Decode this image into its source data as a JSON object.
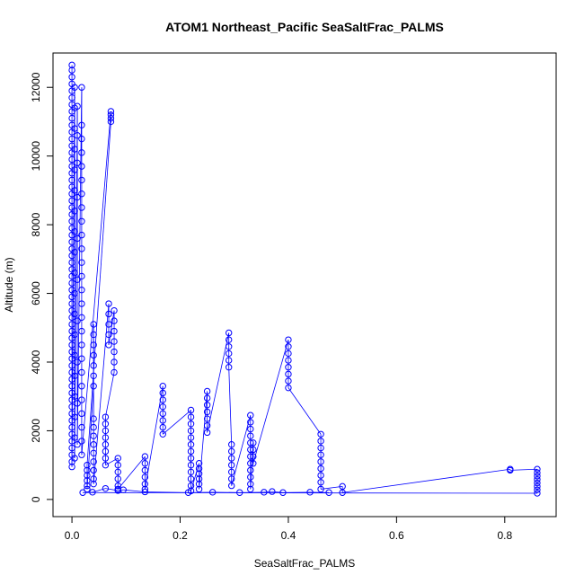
{
  "chart_data": {
    "type": "scatter",
    "title": "ATOM1 Northeast_Pacific SeaSaltFrac_PALMS",
    "xlabel": "SeaSaltFrac_PALMS",
    "ylabel": "Altitude (m)",
    "xlim": [
      -0.035,
      0.895
    ],
    "ylim": [
      -500,
      13000
    ],
    "x_ticks": [
      0,
      0.2,
      0.4,
      0.6,
      0.8
    ],
    "x_tick_labels": [
      "0.0",
      "0.2",
      "0.4",
      "0.6",
      "0.8"
    ],
    "y_ticks": [
      0,
      2000,
      4000,
      6000,
      8000,
      10000,
      12000
    ],
    "y_tick_labels": [
      "0",
      "2000",
      "4000",
      "6000",
      "8000",
      "10000",
      "12000"
    ],
    "series": [
      {
        "color": "#0000ff",
        "marker": "open-circle",
        "connected": true,
        "points": [
          [
            0.0,
            12650
          ],
          [
            0.0,
            12500
          ],
          [
            0.0,
            12300
          ],
          [
            0.0,
            12100
          ],
          [
            0.0,
            11900
          ],
          [
            0.0,
            11700
          ],
          [
            0.0,
            11500
          ],
          [
            0.0,
            11300
          ],
          [
            0.0,
            11100
          ],
          [
            0.0,
            10900
          ],
          [
            0.0,
            10700
          ],
          [
            0.0,
            10500
          ],
          [
            0.0,
            10300
          ],
          [
            0.0,
            10100
          ],
          [
            0.0,
            9900
          ],
          [
            0.0,
            9700
          ],
          [
            0.0,
            9500
          ],
          [
            0.0,
            9300
          ],
          [
            0.0,
            9100
          ],
          [
            0.0,
            8900
          ],
          [
            0.0,
            8700
          ],
          [
            0.0,
            8500
          ],
          [
            0.0,
            8300
          ],
          [
            0.0,
            8100
          ],
          [
            0.0,
            7900
          ],
          [
            0.0,
            7700
          ],
          [
            0.0,
            7500
          ],
          [
            0.0,
            7300
          ],
          [
            0.0,
            7100
          ],
          [
            0.0,
            6900
          ],
          [
            0.0,
            6700
          ],
          [
            0.0,
            6500
          ],
          [
            0.0,
            6300
          ],
          [
            0.0,
            6100
          ],
          [
            0.0,
            5900
          ],
          [
            0.0,
            5700
          ],
          [
            0.0,
            5500
          ],
          [
            0.0,
            5300
          ],
          [
            0.0,
            5100
          ],
          [
            0.0,
            4900
          ],
          [
            0.0,
            4700
          ],
          [
            0.0,
            4500
          ],
          [
            0.0,
            4300
          ],
          [
            0.0,
            4100
          ],
          [
            0.0,
            3900
          ],
          [
            0.0,
            3700
          ],
          [
            0.0,
            3500
          ],
          [
            0.0,
            3300
          ],
          [
            0.0,
            3100
          ],
          [
            0.0,
            2900
          ],
          [
            0.0,
            2700
          ],
          [
            0.0,
            2500
          ],
          [
            0.0,
            2300
          ],
          [
            0.0,
            2100
          ],
          [
            0.0,
            1900
          ],
          [
            0.0,
            1700
          ],
          [
            0.0,
            1500
          ],
          [
            0.0,
            1300
          ],
          [
            0.0,
            1100
          ],
          [
            0.0,
            950
          ],
          [
            0.005,
            12000
          ],
          [
            0.005,
            11400
          ],
          [
            0.005,
            10800
          ],
          [
            0.005,
            10200
          ],
          [
            0.005,
            9600
          ],
          [
            0.005,
            9000
          ],
          [
            0.005,
            8400
          ],
          [
            0.005,
            7800
          ],
          [
            0.005,
            7200
          ],
          [
            0.005,
            6600
          ],
          [
            0.005,
            6000
          ],
          [
            0.005,
            5400
          ],
          [
            0.005,
            4800
          ],
          [
            0.005,
            4200
          ],
          [
            0.005,
            3600
          ],
          [
            0.005,
            3000
          ],
          [
            0.005,
            2400
          ],
          [
            0.005,
            1800
          ],
          [
            0.005,
            1200
          ],
          [
            0.01,
            11450
          ],
          [
            0.01,
            10600
          ],
          [
            0.01,
            9800
          ],
          [
            0.01,
            8800
          ],
          [
            0.01,
            7600
          ],
          [
            0.01,
            6400
          ],
          [
            0.01,
            5200
          ],
          [
            0.01,
            4000
          ],
          [
            0.01,
            2800
          ],
          [
            0.01,
            1600
          ],
          [
            0.018,
            12000
          ],
          [
            0.018,
            10900
          ],
          [
            0.018,
            10500
          ],
          [
            0.018,
            10100
          ],
          [
            0.018,
            9700
          ],
          [
            0.018,
            9300
          ],
          [
            0.018,
            8900
          ],
          [
            0.018,
            8500
          ],
          [
            0.018,
            8100
          ],
          [
            0.018,
            7700
          ],
          [
            0.018,
            7300
          ],
          [
            0.018,
            6900
          ],
          [
            0.018,
            6500
          ],
          [
            0.018,
            6100
          ],
          [
            0.018,
            5700
          ],
          [
            0.018,
            5300
          ],
          [
            0.018,
            4900
          ],
          [
            0.018,
            4500
          ],
          [
            0.018,
            4100
          ],
          [
            0.018,
            3700
          ],
          [
            0.018,
            3300
          ],
          [
            0.018,
            2900
          ],
          [
            0.018,
            2500
          ],
          [
            0.018,
            2100
          ],
          [
            0.018,
            1700
          ],
          [
            0.018,
            1300
          ],
          [
            0.072,
            11300
          ],
          [
            0.072,
            11200
          ],
          [
            0.072,
            11100
          ],
          [
            0.072,
            11000
          ],
          [
            0.028,
            1000
          ],
          [
            0.028,
            850
          ],
          [
            0.028,
            700
          ],
          [
            0.028,
            550
          ],
          [
            0.028,
            400
          ],
          [
            0.028,
            300
          ],
          [
            0.04,
            3300
          ],
          [
            0.04,
            3600
          ],
          [
            0.04,
            3900
          ],
          [
            0.04,
            4200
          ],
          [
            0.04,
            4500
          ],
          [
            0.04,
            4800
          ],
          [
            0.04,
            5100
          ],
          [
            0.04,
            2350
          ],
          [
            0.04,
            2100
          ],
          [
            0.04,
            1850
          ],
          [
            0.04,
            1600
          ],
          [
            0.04,
            1350
          ],
          [
            0.04,
            1100
          ],
          [
            0.04,
            850
          ],
          [
            0.04,
            600
          ],
          [
            0.04,
            450
          ],
          [
            0.068,
            5700
          ],
          [
            0.068,
            5400
          ],
          [
            0.068,
            5100
          ],
          [
            0.068,
            4800
          ],
          [
            0.068,
            4500
          ],
          [
            0.078,
            5500
          ],
          [
            0.078,
            5200
          ],
          [
            0.078,
            4900
          ],
          [
            0.078,
            4600
          ],
          [
            0.078,
            4300
          ],
          [
            0.078,
            4000
          ],
          [
            0.078,
            3700
          ],
          [
            0.062,
            2400
          ],
          [
            0.062,
            2200
          ],
          [
            0.062,
            2000
          ],
          [
            0.062,
            1800
          ],
          [
            0.062,
            1600
          ],
          [
            0.062,
            1400
          ],
          [
            0.062,
            1200
          ],
          [
            0.062,
            1000
          ],
          [
            0.085,
            1200
          ],
          [
            0.085,
            1000
          ],
          [
            0.085,
            800
          ],
          [
            0.085,
            600
          ],
          [
            0.085,
            400
          ],
          [
            0.085,
            300
          ],
          [
            0.135,
            1250
          ],
          [
            0.135,
            1050
          ],
          [
            0.135,
            850
          ],
          [
            0.135,
            650
          ],
          [
            0.135,
            450
          ],
          [
            0.135,
            300
          ],
          [
            0.168,
            3300
          ],
          [
            0.168,
            3100
          ],
          [
            0.168,
            2900
          ],
          [
            0.168,
            2700
          ],
          [
            0.168,
            2500
          ],
          [
            0.168,
            2300
          ],
          [
            0.168,
            2100
          ],
          [
            0.168,
            1900
          ],
          [
            0.22,
            2600
          ],
          [
            0.22,
            2400
          ],
          [
            0.22,
            2200
          ],
          [
            0.22,
            2000
          ],
          [
            0.22,
            1800
          ],
          [
            0.22,
            1600
          ],
          [
            0.22,
            1400
          ],
          [
            0.22,
            1200
          ],
          [
            0.22,
            1000
          ],
          [
            0.22,
            800
          ],
          [
            0.22,
            600
          ],
          [
            0.22,
            400
          ],
          [
            0.22,
            250
          ],
          [
            0.235,
            1050
          ],
          [
            0.235,
            900
          ],
          [
            0.235,
            750
          ],
          [
            0.235,
            600
          ],
          [
            0.235,
            450
          ],
          [
            0.235,
            300
          ],
          [
            0.25,
            3150
          ],
          [
            0.25,
            2950
          ],
          [
            0.25,
            2750
          ],
          [
            0.25,
            2550
          ],
          [
            0.25,
            2350
          ],
          [
            0.25,
            2150
          ],
          [
            0.25,
            1950
          ],
          [
            0.29,
            4850
          ],
          [
            0.29,
            4650
          ],
          [
            0.29,
            4450
          ],
          [
            0.29,
            4250
          ],
          [
            0.29,
            4050
          ],
          [
            0.29,
            3850
          ],
          [
            0.295,
            1600
          ],
          [
            0.295,
            1400
          ],
          [
            0.295,
            1200
          ],
          [
            0.295,
            1000
          ],
          [
            0.295,
            800
          ],
          [
            0.295,
            600
          ],
          [
            0.295,
            400
          ],
          [
            0.33,
            2450
          ],
          [
            0.33,
            2250
          ],
          [
            0.33,
            2050
          ],
          [
            0.33,
            1850
          ],
          [
            0.33,
            1650
          ],
          [
            0.33,
            1450
          ],
          [
            0.33,
            1250
          ],
          [
            0.33,
            1050
          ],
          [
            0.33,
            850
          ],
          [
            0.33,
            650
          ],
          [
            0.33,
            450
          ],
          [
            0.33,
            300
          ],
          [
            0.335,
            1650
          ],
          [
            0.335,
            1450
          ],
          [
            0.335,
            1250
          ],
          [
            0.335,
            1050
          ],
          [
            0.4,
            4650
          ],
          [
            0.4,
            4450
          ],
          [
            0.4,
            4250
          ],
          [
            0.4,
            4050
          ],
          [
            0.4,
            3850
          ],
          [
            0.4,
            3650
          ],
          [
            0.4,
            3450
          ],
          [
            0.4,
            3250
          ],
          [
            0.46,
            1900
          ],
          [
            0.46,
            1700
          ],
          [
            0.46,
            1500
          ],
          [
            0.46,
            1300
          ],
          [
            0.46,
            1100
          ],
          [
            0.46,
            900
          ],
          [
            0.46,
            700
          ],
          [
            0.46,
            500
          ],
          [
            0.46,
            300
          ],
          [
            0.5,
            380
          ],
          [
            0.5,
            200
          ],
          [
            0.81,
            880
          ],
          [
            0.81,
            850
          ],
          [
            0.86,
            880
          ],
          [
            0.86,
            780
          ],
          [
            0.86,
            680
          ],
          [
            0.86,
            580
          ],
          [
            0.86,
            480
          ],
          [
            0.86,
            380
          ],
          [
            0.86,
            280
          ],
          [
            0.86,
            180
          ],
          [
            0.02,
            200
          ],
          [
            0.038,
            210
          ],
          [
            0.062,
            320
          ],
          [
            0.085,
            260
          ],
          [
            0.095,
            280
          ],
          [
            0.135,
            220
          ],
          [
            0.215,
            200
          ],
          [
            0.26,
            210
          ],
          [
            0.31,
            200
          ],
          [
            0.355,
            210
          ],
          [
            0.37,
            230
          ],
          [
            0.39,
            200
          ],
          [
            0.44,
            210
          ],
          [
            0.475,
            200
          ]
        ]
      }
    ]
  }
}
